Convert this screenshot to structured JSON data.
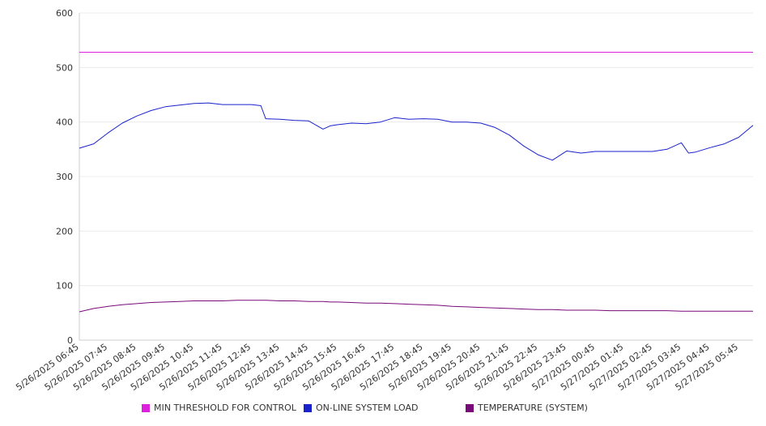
{
  "chart_data": {
    "type": "line",
    "title": "",
    "xlabel": "",
    "ylabel": "",
    "ylim": [
      0,
      600
    ],
    "yticks": [
      0,
      100,
      200,
      300,
      400,
      500,
      600
    ],
    "grid": true,
    "legend_position": "bottom",
    "xtick_labels": [
      "5/26/2025 06:45",
      "5/26/2025 07:45",
      "5/26/2025 08:45",
      "5/26/2025 09:45",
      "5/26/2025 10:45",
      "5/26/2025 11:45",
      "5/26/2025 12:45",
      "5/26/2025 13:45",
      "5/26/2025 14:45",
      "5/26/2025 15:45",
      "5/26/2025 16:45",
      "5/26/2025 17:45",
      "5/26/2025 18:45",
      "5/26/2025 19:45",
      "5/26/2025 20:45",
      "5/26/2025 21:45",
      "5/26/2025 22:45",
      "5/26/2025 23:45",
      "5/27/2025 00:45",
      "5/27/2025 01:45",
      "5/27/2025 02:45",
      "5/27/2025 03:45",
      "5/27/2025 04:45",
      "5/27/2025 05:45"
    ],
    "x": [
      "5/26/2025 06:45",
      "5/26/2025 07:15",
      "5/26/2025 07:45",
      "5/26/2025 08:15",
      "5/26/2025 08:45",
      "5/26/2025 09:15",
      "5/26/2025 09:45",
      "5/26/2025 10:15",
      "5/26/2025 10:45",
      "5/26/2025 11:15",
      "5/26/2025 11:45",
      "5/26/2025 12:15",
      "5/26/2025 12:45",
      "5/26/2025 13:05",
      "5/26/2025 13:15",
      "5/26/2025 13:45",
      "5/26/2025 14:15",
      "5/26/2025 14:45",
      "5/26/2025 15:15",
      "5/26/2025 15:30",
      "5/26/2025 15:45",
      "5/26/2025 16:15",
      "5/26/2025 16:45",
      "5/26/2025 17:15",
      "5/26/2025 17:45",
      "5/26/2025 18:15",
      "5/26/2025 18:45",
      "5/26/2025 19:15",
      "5/26/2025 19:45",
      "5/26/2025 20:15",
      "5/26/2025 20:45",
      "5/26/2025 21:15",
      "5/26/2025 21:45",
      "5/26/2025 22:15",
      "5/26/2025 22:45",
      "5/26/2025 23:15",
      "5/26/2025 23:45",
      "5/27/2025 00:00",
      "5/27/2025 00:15",
      "5/27/2025 00:45",
      "5/27/2025 01:15",
      "5/27/2025 01:45",
      "5/27/2025 02:15",
      "5/27/2025 02:45",
      "5/27/2025 03:15",
      "5/27/2025 03:45",
      "5/27/2025 04:00",
      "5/27/2025 04:15",
      "5/27/2025 04:45",
      "5/27/2025 05:15",
      "5/27/2025 05:45",
      "5/27/2025 06:15"
    ],
    "series": [
      {
        "name": "MIN THRESHOLD FOR CONTROL",
        "color": "#dd22dd",
        "values": [
          528,
          528,
          528,
          528,
          528,
          528,
          528,
          528,
          528,
          528,
          528,
          528,
          528,
          528,
          528,
          528,
          528,
          528,
          528,
          528,
          528,
          528,
          528,
          528,
          528,
          528,
          528,
          528,
          528,
          528,
          528,
          528,
          528,
          528,
          528,
          528,
          528,
          528,
          528,
          528,
          528,
          528,
          528,
          528,
          528,
          528,
          528,
          528,
          528,
          528,
          528,
          528
        ]
      },
      {
        "name": "ON-LINE SYSTEM LOAD",
        "color": "#1a22cc",
        "values": [
          352,
          360,
          380,
          398,
          411,
          421,
          428,
          431,
          434,
          435,
          432,
          432,
          432,
          430,
          406,
          405,
          403,
          402,
          387,
          393,
          395,
          398,
          397,
          400,
          408,
          405,
          406,
          405,
          400,
          400,
          398,
          390,
          376,
          356,
          340,
          330,
          347,
          345,
          343,
          346,
          346,
          346,
          346,
          346,
          350,
          362,
          343,
          345,
          353,
          360,
          372,
          394
        ]
      },
      {
        "name": "TEMPERATURE (SYSTEM)",
        "color": "#7a0a7a",
        "values": [
          52,
          58,
          62,
          65,
          67,
          69,
          70,
          71,
          72,
          72,
          72,
          73,
          73,
          73,
          73,
          72,
          72,
          71,
          71,
          70,
          70,
          69,
          68,
          68,
          67,
          66,
          65,
          64,
          62,
          61,
          60,
          59,
          58,
          57,
          56,
          56,
          55,
          55,
          55,
          55,
          54,
          54,
          54,
          54,
          54,
          53,
          53,
          53,
          53,
          53,
          53,
          53
        ]
      }
    ]
  }
}
